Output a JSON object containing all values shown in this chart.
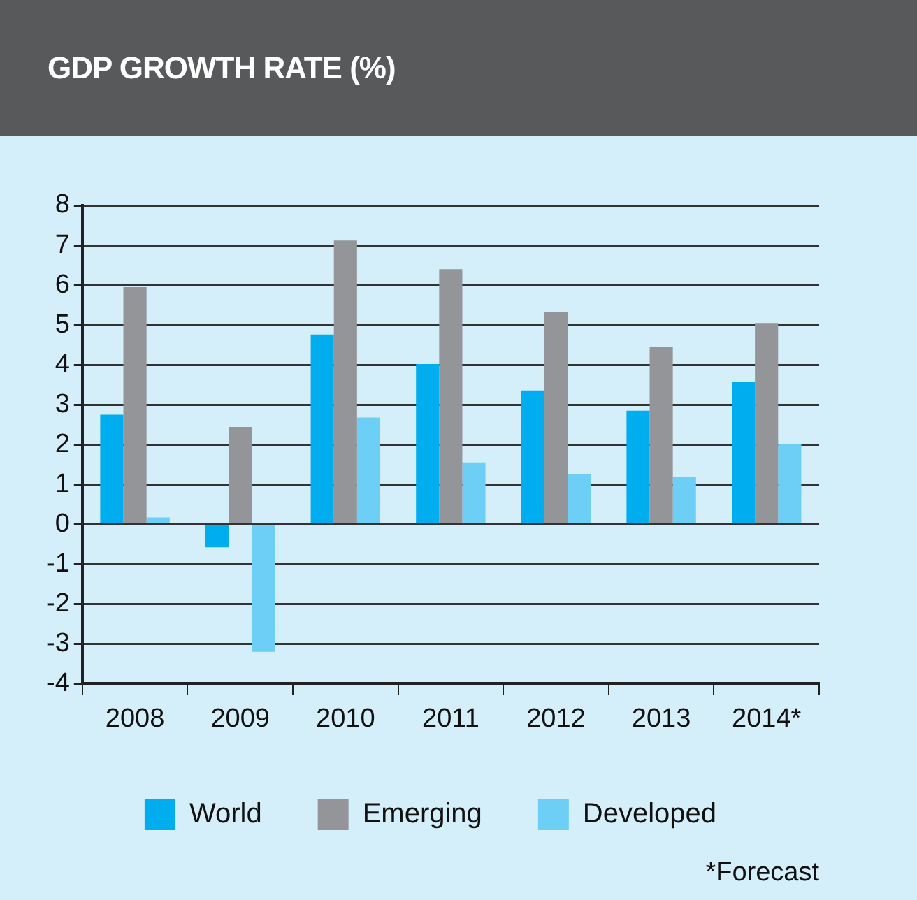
{
  "chart_data": {
    "type": "bar",
    "title": "GDP GROWTH RATE (%)",
    "categories": [
      "2008",
      "2009",
      "2010",
      "2011",
      "2012",
      "2013",
      "2014*"
    ],
    "series": [
      {
        "name": "World",
        "color": "#00aeef",
        "values": [
          2.75,
          -0.58,
          4.76,
          4.02,
          3.36,
          2.85,
          3.57
        ]
      },
      {
        "name": "Emerging",
        "color": "#939598",
        "values": [
          5.95,
          2.44,
          7.12,
          6.4,
          5.32,
          4.45,
          5.05
        ]
      },
      {
        "name": "Developed",
        "color": "#6dcff6",
        "values": [
          0.17,
          -3.2,
          2.68,
          1.55,
          1.25,
          1.19,
          2.01
        ]
      }
    ],
    "ylim": [
      -4,
      8
    ],
    "yticks": [
      -4,
      -3,
      -2,
      -1,
      0,
      1,
      2,
      3,
      4,
      5,
      6,
      7,
      8
    ],
    "grid": "y",
    "legend": "bottom",
    "annotations": [
      "*Forecast"
    ]
  }
}
